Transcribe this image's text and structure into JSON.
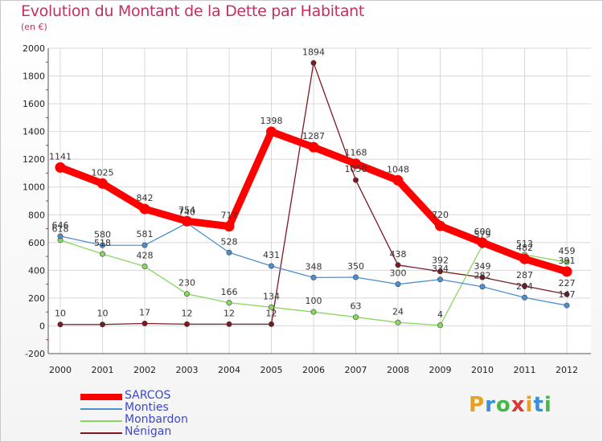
{
  "header": {
    "title": "Evolution du Montant de la Dette par Habitant",
    "subtitle": "(en €)"
  },
  "logo": {
    "text": "Proxiti",
    "colors": [
      "#e8a020",
      "#3a8fd8",
      "#48b848",
      "#d83a3a",
      "#e8a020",
      "#3a8fd8",
      "#48b848"
    ]
  },
  "chart_data": {
    "type": "line",
    "x": [
      "2000",
      "2001",
      "2002",
      "2003",
      "2004",
      "2005",
      "2006",
      "2007",
      "2008",
      "2009",
      "2010",
      "2011",
      "2012"
    ],
    "ylim": [
      -200,
      2000
    ],
    "yticks": [
      "-200",
      "0",
      "200",
      "400",
      "600",
      "800",
      "1000",
      "1200",
      "1400",
      "1600",
      "1800",
      "2000"
    ],
    "grid": true,
    "legend_position": "bottom-left",
    "series": [
      {
        "name": "SARCOS",
        "color": "#ff0000",
        "values": [
          1141,
          1025,
          842,
          754,
          717,
          1398,
          1287,
          1168,
          1048,
          720,
          600,
          482,
          391
        ],
        "labels": [
          "1141",
          "1025",
          "842",
          "754",
          "717",
          "1398",
          "1287",
          "1168",
          "1048",
          "720",
          "600",
          "482",
          "391"
        ]
      },
      {
        "name": "Monties",
        "color": "#4a90d0",
        "values": [
          646,
          580,
          581,
          740,
          528,
          431,
          348,
          350,
          300,
          334,
          282,
          204,
          147
        ],
        "labels": [
          "646",
          "580",
          "581",
          "740",
          "528",
          "431",
          "348",
          "350",
          "300",
          "334",
          "282",
          "204",
          "147"
        ]
      },
      {
        "name": "Monbardon",
        "color": "#88d860",
        "values": [
          618,
          518,
          428,
          230,
          166,
          134,
          100,
          63,
          24,
          4,
          579,
          513,
          459
        ],
        "labels": [
          "618",
          "518",
          "428",
          "230",
          "166",
          "134",
          "100",
          "63",
          "24",
          "4",
          "579",
          "513",
          "459"
        ]
      },
      {
        "name": "Nénigan",
        "color": "#7a1a20",
        "values": [
          10,
          10,
          17,
          12,
          12,
          12,
          1894,
          1050,
          438,
          392,
          349,
          287,
          227
        ],
        "labels": [
          "10",
          "10",
          "17",
          "12",
          "12",
          "12",
          "1894",
          "1050",
          "438",
          "392",
          "349",
          "287",
          "227"
        ]
      }
    ]
  }
}
